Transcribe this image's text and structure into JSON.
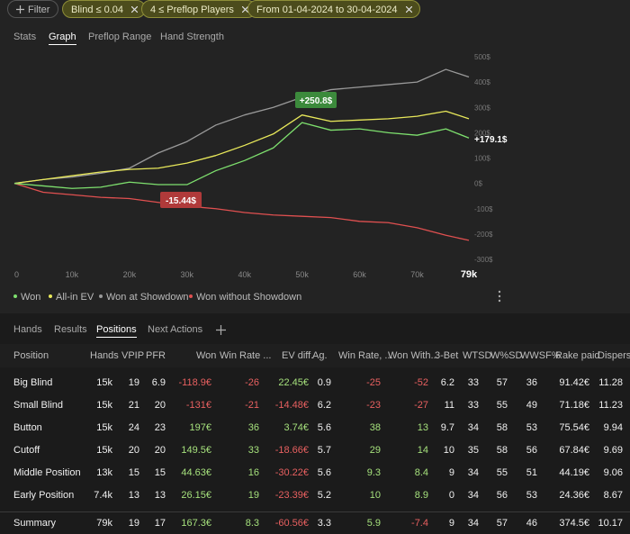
{
  "filter_bar": {
    "button": "Filter",
    "chips": [
      "Blind ≤ 0.04",
      "4 ≤ Preflop Players",
      "From 01-04-2024 to 30-04-2024"
    ]
  },
  "top_tabs": {
    "items": [
      "Stats",
      "Graph",
      "Preflop Range",
      "Hand Strength"
    ],
    "active": 1
  },
  "graph": {
    "x": [
      0,
      5000,
      10000,
      15000,
      20000,
      25000,
      30000,
      35000,
      40000,
      45000,
      50000,
      55000,
      60000,
      65000,
      70000,
      75000,
      79000
    ],
    "xlim": [
      0,
      79000
    ],
    "xticks": [
      0,
      {
        "value": 10000,
        "label": "10k"
      },
      {
        "value": 20000,
        "label": "20k"
      },
      {
        "value": 30000,
        "label": "30k"
      },
      {
        "value": 40000,
        "label": "40k"
      },
      {
        "value": 50000,
        "label": "50k"
      },
      {
        "value": 60000,
        "label": "60k"
      },
      {
        "value": 70000,
        "label": "70k"
      },
      {
        "value": 79000,
        "label": "79k"
      }
    ],
    "ylim": [
      -300,
      500
    ],
    "yticks": [
      {
        "value": -300,
        "label": "-300$"
      },
      {
        "value": -200,
        "label": "-200$"
      },
      {
        "value": -100,
        "label": "-100$"
      },
      {
        "value": 0,
        "label": "0$"
      },
      {
        "value": 100,
        "label": "100$"
      },
      {
        "value": 200,
        "label": "200$"
      },
      {
        "value": 300,
        "label": "300$"
      },
      {
        "value": 400,
        "label": "400$"
      },
      {
        "value": 500,
        "label": "500$"
      }
    ],
    "series": [
      {
        "name": "Won",
        "color": "#7ee06e",
        "values": [
          0,
          -10,
          -20,
          -15,
          5,
          -5,
          -5,
          50,
          90,
          140,
          240,
          210,
          215,
          200,
          190,
          215,
          179.1
        ]
      },
      {
        "name": "All-in EV",
        "color": "#e8e85a",
        "values": [
          0,
          15,
          30,
          45,
          55,
          60,
          80,
          110,
          150,
          195,
          270,
          245,
          250,
          255,
          265,
          285,
          255
        ]
      },
      {
        "name": "Won at Showdown",
        "color": "#9a9a9a",
        "values": [
          0,
          15,
          25,
          40,
          60,
          120,
          165,
          230,
          270,
          300,
          340,
          370,
          380,
          390,
          400,
          450,
          420
        ]
      },
      {
        "name": "Won without Showdown",
        "color": "#e05050",
        "values": [
          0,
          -35,
          -45,
          -55,
          -60,
          -75,
          -90,
          -100,
          -115,
          -125,
          -130,
          -135,
          -150,
          -155,
          -175,
          -205,
          -225
        ]
      }
    ],
    "annotations": [
      "+250.8$",
      "-15.44$",
      "+179.1$"
    ]
  },
  "bottom_tabs": {
    "items": [
      "Hands",
      "Results",
      "Positions",
      "Next Actions"
    ],
    "active": 2
  },
  "table": {
    "columns": [
      "Position",
      "Hands",
      "VPIP",
      "PFR",
      "Won",
      "Win Rate ...",
      "EV diff.",
      "Ag.",
      "Win Rate, ...",
      "Won With...",
      "3-Bet",
      "WTSD",
      "W%SD",
      "WWSF%",
      "Rake paid",
      "Dispersio"
    ],
    "rows": [
      [
        "Big Blind",
        "15k",
        "19",
        "6.9",
        "-118.9€",
        "-26",
        "22.45€",
        "0.9",
        "-25",
        "-52",
        "6.2",
        "33",
        "57",
        "36",
        "91.42€",
        "11.28"
      ],
      [
        "Small Blind",
        "15k",
        "21",
        "20",
        "-131€",
        "-21",
        "-14.48€",
        "6.2",
        "-23",
        "-27",
        "11",
        "33",
        "55",
        "49",
        "71.18€",
        "11.23"
      ],
      [
        "Button",
        "15k",
        "24",
        "23",
        "197€",
        "36",
        "3.74€",
        "5.6",
        "38",
        "13",
        "9.7",
        "34",
        "58",
        "53",
        "75.54€",
        "9.94"
      ],
      [
        "Cutoff",
        "15k",
        "20",
        "20",
        "149.5€",
        "33",
        "-18.66€",
        "5.7",
        "29",
        "14",
        "10",
        "35",
        "58",
        "56",
        "67.84€",
        "9.69"
      ],
      [
        "Middle Position",
        "13k",
        "15",
        "15",
        "44.63€",
        "16",
        "-30.22€",
        "5.6",
        "9.3",
        "8.4",
        "9",
        "34",
        "55",
        "51",
        "44.19€",
        "9.06"
      ],
      [
        "Early Position",
        "7.4k",
        "13",
        "13",
        "26.15€",
        "19",
        "-23.39€",
        "5.2",
        "10",
        "8.9",
        "0",
        "34",
        "56",
        "53",
        "24.36€",
        "8.67"
      ]
    ],
    "summary": [
      "Summary",
      "79k",
      "19",
      "17",
      "167.3€",
      "8.3",
      "-60.56€",
      "3.3",
      "5.9",
      "-7.4",
      "9",
      "34",
      "57",
      "46",
      "374.5€",
      "10.17"
    ]
  }
}
